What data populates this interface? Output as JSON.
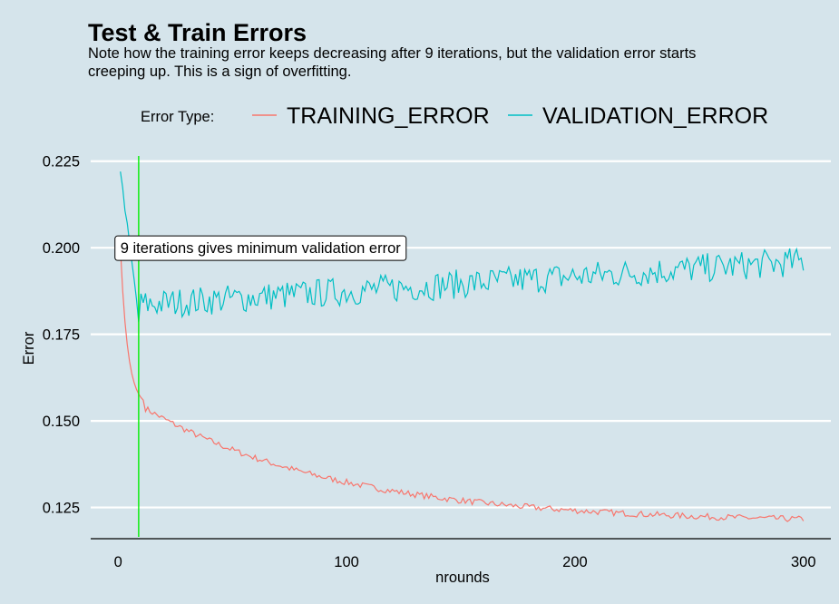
{
  "chart_data": {
    "type": "line",
    "title": "Test & Train Errors",
    "subtitle_lines": [
      "Note how the training error keeps decreasing after 9 iterations, but the validation error starts",
      "creeping up. This is a sign of overfitting."
    ],
    "xlabel": "nrounds",
    "ylabel": "Error",
    "xlim": [
      -12,
      312
    ],
    "ylim": [
      0.1165,
      0.2265
    ],
    "xticks": [
      0,
      100,
      200,
      300
    ],
    "xtick_labels": [
      "0",
      "100",
      "200",
      "300"
    ],
    "yticks": [
      0.125,
      0.15,
      0.175,
      0.2,
      0.225
    ],
    "ytick_labels": [
      "0.125",
      "0.150",
      "0.175",
      "0.200",
      "0.225"
    ],
    "grid": "horizontal",
    "legend": {
      "title": "Error Type:",
      "position": "top",
      "entries": [
        {
          "label": "TRAINING_ERROR",
          "color": "#f8766d"
        },
        {
          "label": "VALIDATION_ERROR",
          "color": "#00bfc4"
        }
      ]
    },
    "vline": {
      "x": 9,
      "color": "#00ee00"
    },
    "annotation": {
      "text": "9 iterations gives minimum validation error",
      "x": 1,
      "y": 0.2
    }
  }
}
